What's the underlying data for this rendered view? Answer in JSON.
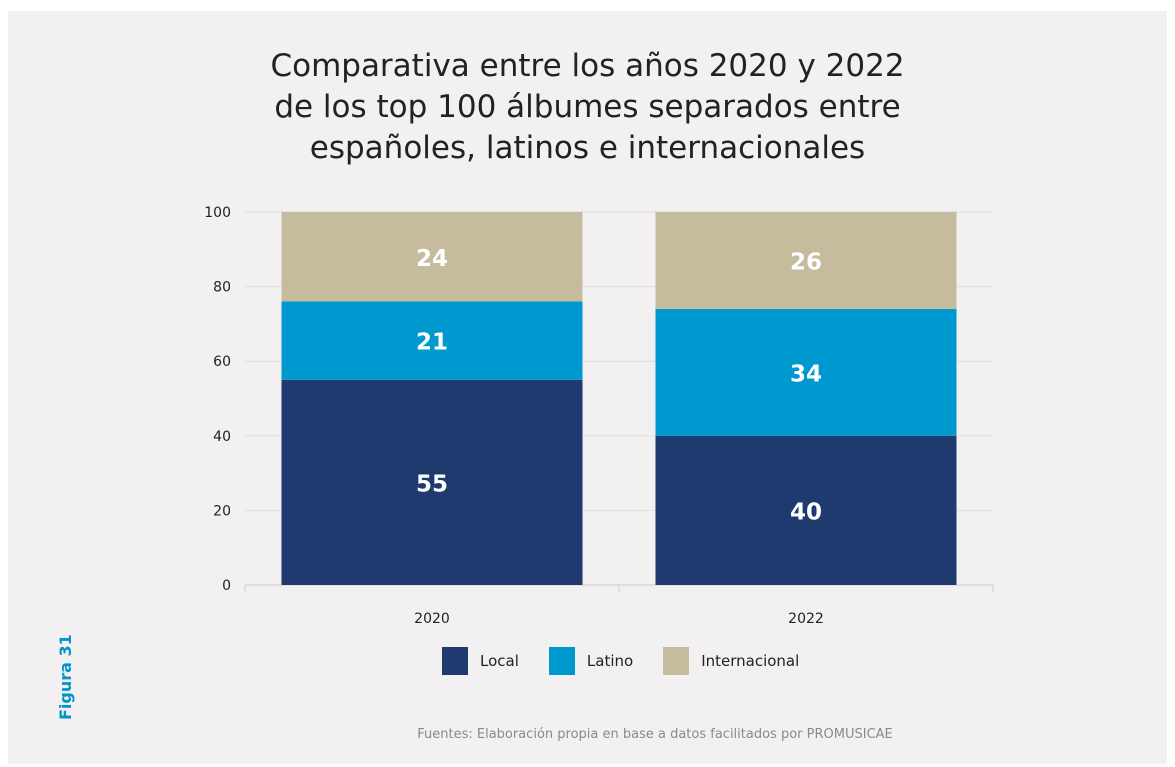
{
  "title_lines": [
    "Comparativa entre los años 2020 y 2022",
    "de los top 100 álbumes separados entre",
    "españoles, latinos e internacionales"
  ],
  "figure_label": "Figura 31",
  "source": "Fuentes: Elaboración propia en base a datos facilitados por PROMUSICAE",
  "chart_data": {
    "type": "bar",
    "stacked": true,
    "categories": [
      "2020",
      "2022"
    ],
    "series": [
      {
        "name": "Local",
        "values": [
          55,
          40
        ],
        "color": "#1f3a6e"
      },
      {
        "name": "Latino",
        "values": [
          21,
          34
        ],
        "color": "#0099cf"
      },
      {
        "name": "Internacional",
        "values": [
          24,
          26
        ],
        "color": "#c5bb9d"
      }
    ],
    "yticks": [
      0,
      20,
      40,
      60,
      80,
      100
    ],
    "ylim": [
      0,
      100
    ],
    "grid": true,
    "legend_position": "bottom",
    "data_labels": true
  }
}
